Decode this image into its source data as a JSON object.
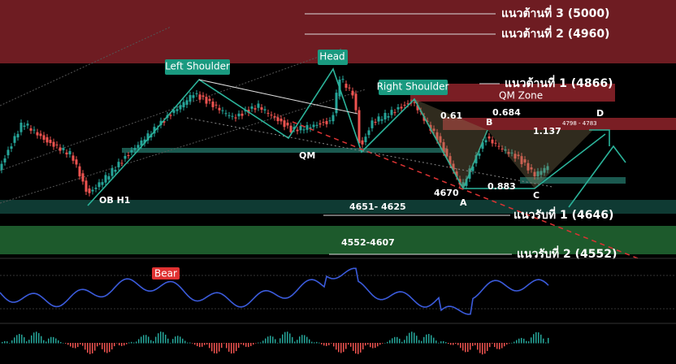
{
  "levels": {
    "r3": "แนวต้านที่ 3 (5000)",
    "r2": "แนวต้านที่ 2 (4960)",
    "r1": "แนวต้านที่ 1 (4866)",
    "s1": "แนวรับที่ 1 (4646)",
    "s2": "แนวรับที่ 2 (4552)"
  },
  "zones": {
    "qm_zone": "QM Zone",
    "zone_4651": "4651- 4625",
    "zone_4552": "4552-4607",
    "zone_4798": "4798 - 4783"
  },
  "pattern": {
    "left_shoulder": "Left Shoulder",
    "head": "Head",
    "right_shoulder": "Right Shoulder",
    "qm": "QM",
    "ob": "OB H1"
  },
  "harmonic": {
    "fib_061": "0.61",
    "fib_0684": "0.684",
    "fib_1137": "1.137",
    "fib_0883": "0.883",
    "b": "B",
    "d": "D",
    "a": "A",
    "c": "C",
    "low": "4670"
  },
  "indicator": {
    "bear": "Bear"
  }
}
